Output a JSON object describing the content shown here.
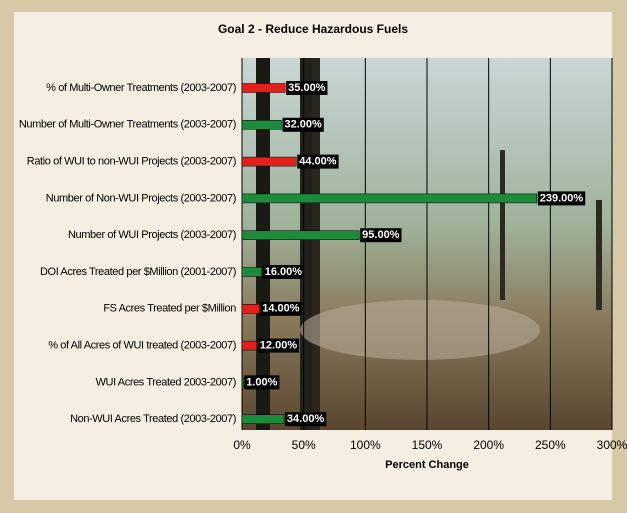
{
  "chart_data": {
    "type": "hbar",
    "title": "Goal 2 - Reduce Hazardous Fuels",
    "x_label": "Percent Change",
    "categories": [
      "% of Multi-Owner Treatments (2003-2007)",
      "Number of Multi-Owner Treatments (2003-2007)",
      "Ratio of WUI to non-WUI Projects (2003-2007)",
      "Number of Non-WUI Projects (2003-2007)",
      "Number of WUI Projects (2003-2007)",
      "DOI Acres Treated per $Million (2001-2007)",
      "FS Acres Treated per $Million",
      "% of All Acres of WUI treated (2003-2007)",
      "WUI Acres Treated 2003-2007)",
      "Non-WUI Acres Treated (2003-2007)"
    ],
    "values": [
      35,
      32,
      44,
      239,
      95,
      16,
      14,
      12,
      1,
      34
    ],
    "value_labels": [
      "35.00%",
      "32.00%",
      "44.00%",
      "239.00%",
      "95.00%",
      "16.00%",
      "14.00%",
      "12.00%",
      "1.00%",
      "34.00%"
    ],
    "colors": [
      "#e3201b",
      "#1e8a3c",
      "#e3201b",
      "#1e8a3c",
      "#1e8a3c",
      "#1e8a3c",
      "#e3201b",
      "#e3201b",
      "#1e8a3c",
      "#1e8a3c"
    ],
    "xlim": [
      0,
      300
    ],
    "xticks": [
      {
        "value": 0,
        "label": "0%"
      },
      {
        "value": 50,
        "label": "50%"
      },
      {
        "value": 100,
        "label": "100%"
      },
      {
        "value": 150,
        "label": "150%"
      },
      {
        "value": 200,
        "label": "200%"
      },
      {
        "value": 250,
        "label": "250%"
      },
      {
        "value": 300,
        "label": "300%"
      }
    ],
    "grid": true
  }
}
